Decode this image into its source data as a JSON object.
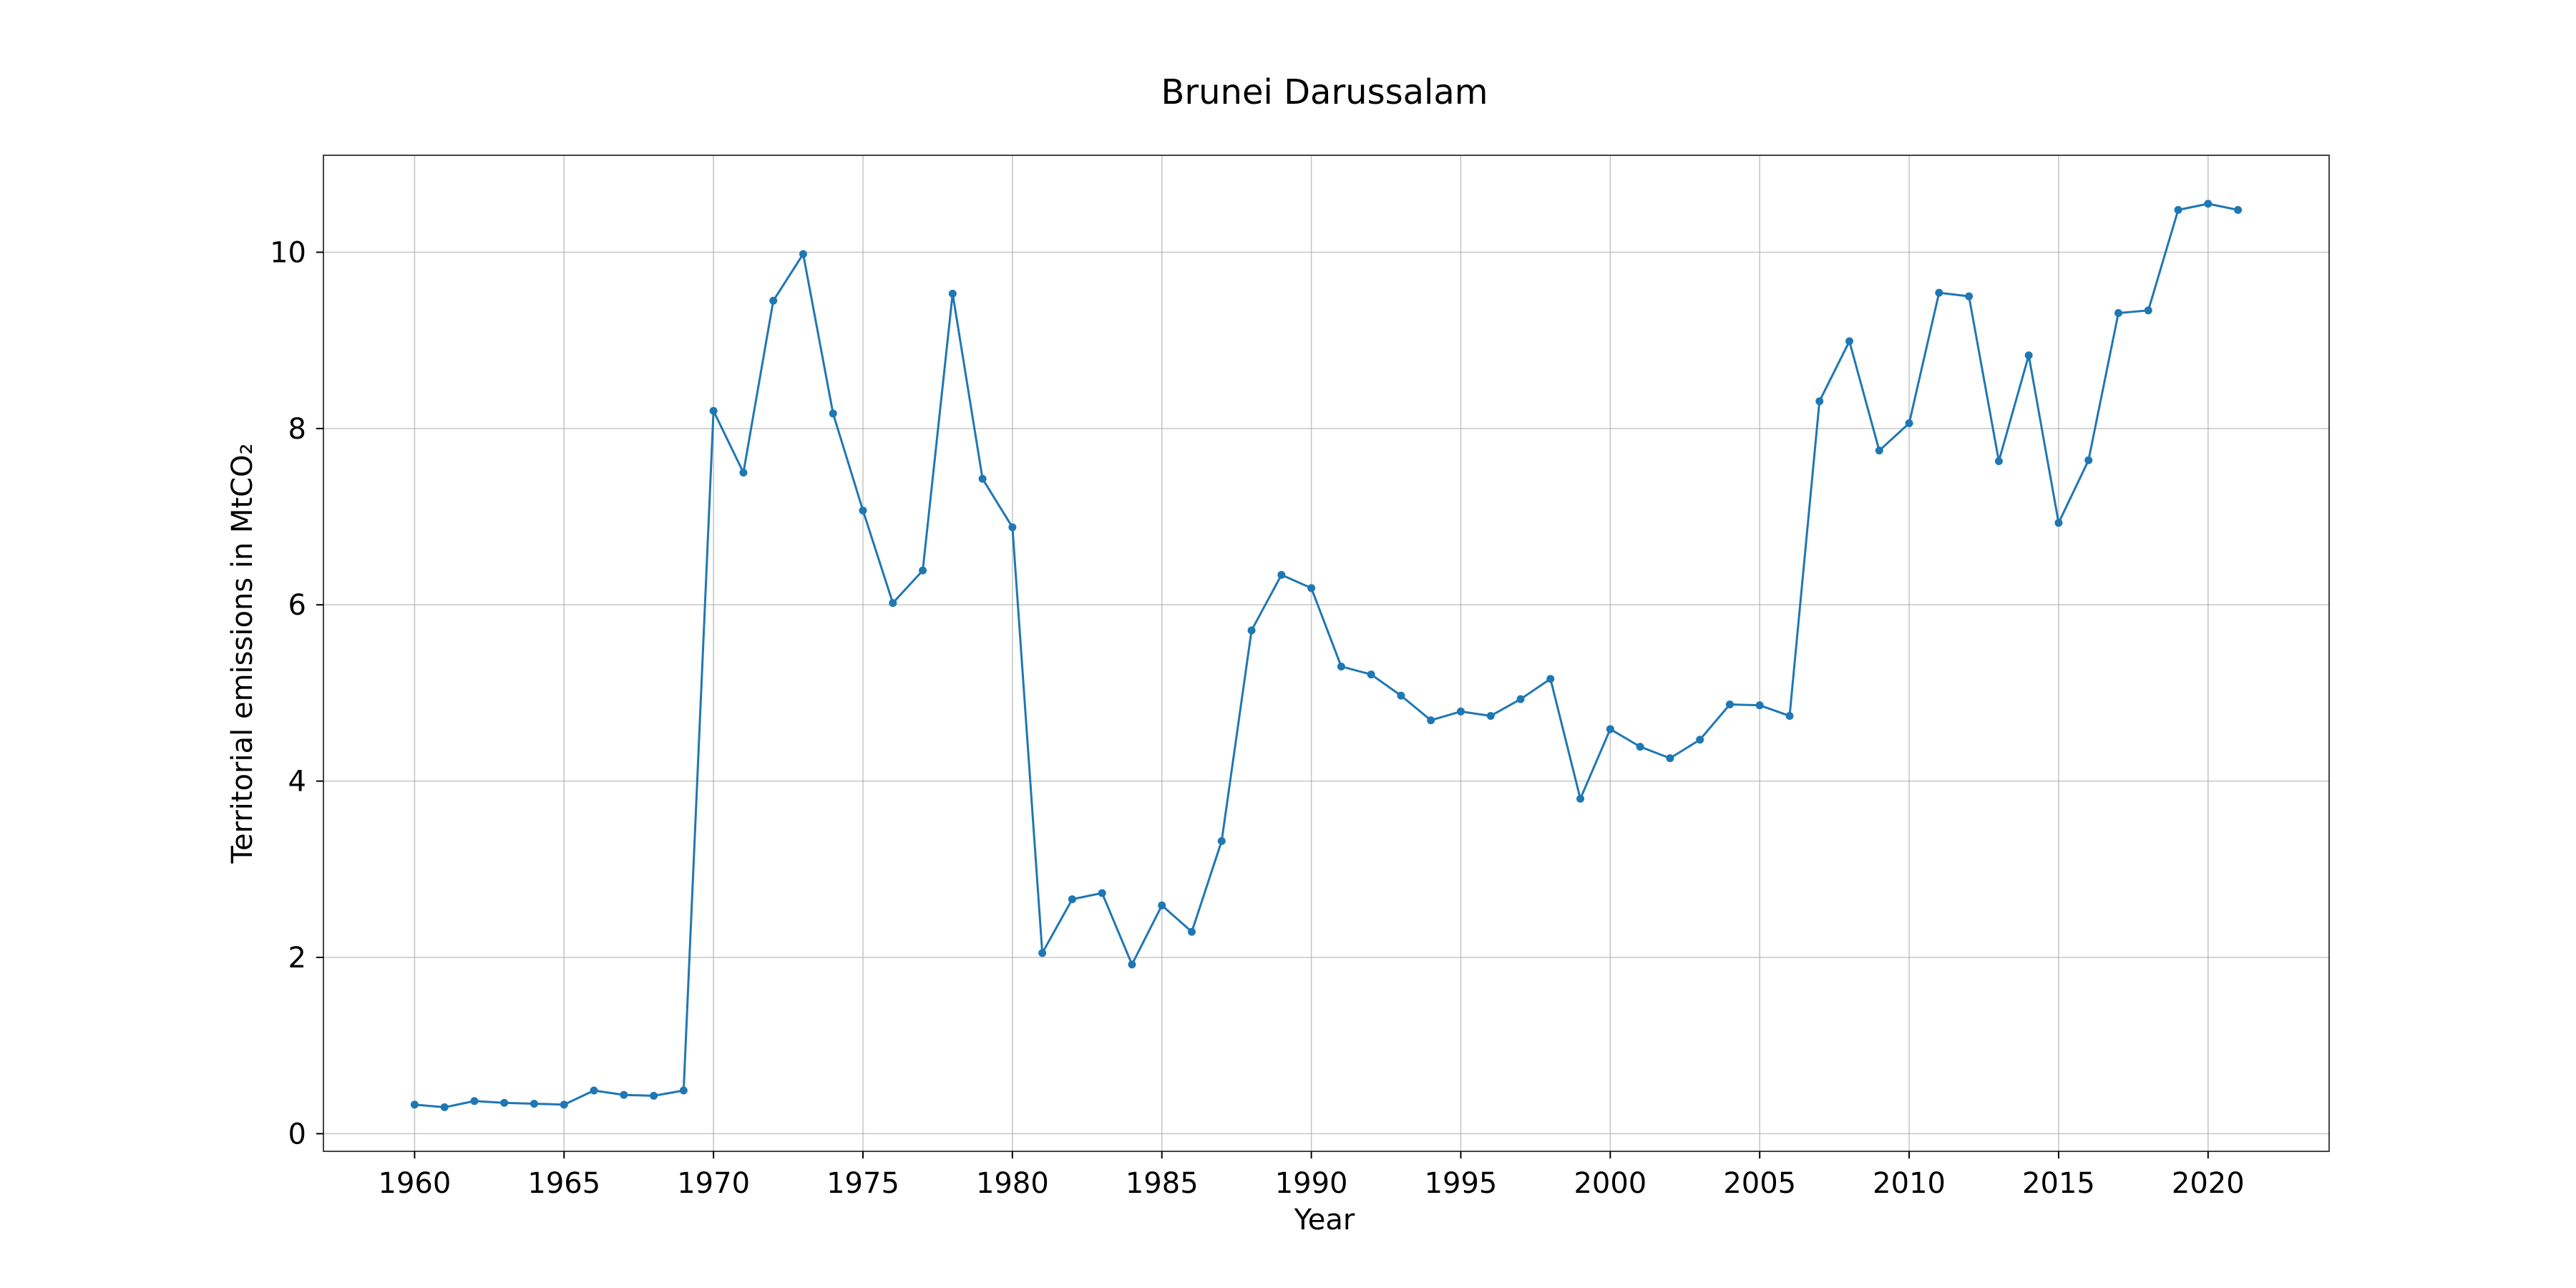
{
  "chart_data": {
    "type": "line",
    "title": "Brunei Darussalam",
    "xlabel": "Year",
    "ylabel": "Territorial emissions in MtCO₂",
    "xlim": [
      1956.95,
      2024.05
    ],
    "ylim": [
      -0.2,
      11.1
    ],
    "xticks": [
      1960,
      1965,
      1970,
      1975,
      1980,
      1985,
      1990,
      1995,
      2000,
      2005,
      2010,
      2015,
      2020
    ],
    "yticks": [
      0,
      2,
      4,
      6,
      8,
      10
    ],
    "grid": true,
    "series": [
      {
        "color": "#1f77b4",
        "x": [
          1960,
          1961,
          1962,
          1963,
          1964,
          1965,
          1966,
          1967,
          1968,
          1969,
          1970,
          1971,
          1972,
          1973,
          1974,
          1975,
          1976,
          1977,
          1978,
          1979,
          1980,
          1981,
          1982,
          1983,
          1984,
          1985,
          1986,
          1987,
          1988,
          1989,
          1990,
          1991,
          1992,
          1993,
          1994,
          1995,
          1996,
          1997,
          1998,
          1999,
          2000,
          2001,
          2002,
          2003,
          2004,
          2005,
          2006,
          2007,
          2008,
          2009,
          2010,
          2011,
          2012,
          2013,
          2014,
          2015,
          2016,
          2017,
          2018,
          2019,
          2020,
          2021
        ],
        "y": [
          0.33,
          0.3,
          0.37,
          0.35,
          0.34,
          0.33,
          0.49,
          0.44,
          0.43,
          0.49,
          8.2,
          7.5,
          9.45,
          9.98,
          8.17,
          7.07,
          6.02,
          6.39,
          9.53,
          7.43,
          6.88,
          2.05,
          2.66,
          2.73,
          1.92,
          2.59,
          2.29,
          3.32,
          5.71,
          6.34,
          6.19,
          5.3,
          5.21,
          4.97,
          4.69,
          4.79,
          4.74,
          4.93,
          5.16,
          3.8,
          4.59,
          4.39,
          4.26,
          4.47,
          4.87,
          4.86,
          4.74,
          8.31,
          8.99,
          7.75,
          8.06,
          9.54,
          9.5,
          7.63,
          8.83,
          6.93,
          7.64,
          9.31,
          9.34,
          10.48,
          10.55,
          10.48
        ]
      }
    ]
  }
}
